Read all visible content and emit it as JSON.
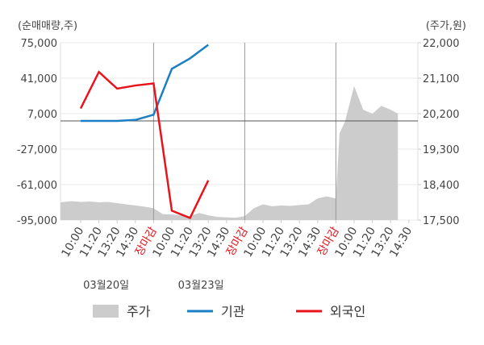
{
  "chart_data": {
    "type": "line",
    "y_label": "(순매매량,주)",
    "y2_label": "(주가,원)",
    "categories": [
      "10:00",
      "11:20",
      "13:20",
      "14:30",
      "장마감",
      "10:00",
      "11:20",
      "13:20",
      "14:30",
      "장마감",
      "10:00",
      "11:20",
      "13:20",
      "14:30",
      "장마감",
      "10:00",
      "11:20",
      "13:20",
      "14:30"
    ],
    "highlight_categories": [
      4,
      9,
      14
    ],
    "highlight_color": "#e8141c",
    "dates": [
      "03월20일",
      "03월23일"
    ],
    "ylim": [
      -95000,
      75000
    ],
    "yticks": [
      {
        "value": 75000,
        "label": "75,000"
      },
      {
        "value": 41000,
        "label": "41,000"
      },
      {
        "value": 7000,
        "label": "7,000"
      },
      {
        "value": -27000,
        "label": "-27,000"
      },
      {
        "value": -61000,
        "label": "-61,000"
      },
      {
        "value": -95000,
        "label": "-95,000"
      }
    ],
    "y2lim": [
      17500,
      22000
    ],
    "y2ticks": [
      {
        "value": 22000,
        "label": "22,000"
      },
      {
        "value": 21100,
        "label": "21,100"
      },
      {
        "value": 20200,
        "label": "20,200"
      },
      {
        "value": 19300,
        "label": "19,300"
      },
      {
        "value": 18400,
        "label": "18,400"
      },
      {
        "value": 17500,
        "label": "17,500"
      }
    ],
    "series": [
      {
        "name": "주가",
        "color": "#cccccc",
        "axis": "y2",
        "kind": "area",
        "x": [
          -1.1,
          -0.5,
          0,
          0.5,
          1,
          1.5,
          2,
          2.5,
          3,
          3.5,
          4,
          4.5,
          5,
          5.5,
          6,
          6.5,
          7,
          7.5,
          8,
          8.5,
          9,
          9.5,
          10,
          10.5,
          11,
          11.5,
          12,
          12.5,
          13,
          13.5,
          14,
          14.2,
          14.5,
          15,
          15.5,
          16,
          16.5,
          17,
          17.4
        ],
        "values": [
          17950,
          17980,
          17960,
          17970,
          17950,
          17960,
          17930,
          17900,
          17870,
          17840,
          17800,
          17650,
          17640,
          17620,
          17600,
          17680,
          17620,
          17580,
          17570,
          17560,
          17600,
          17800,
          17900,
          17850,
          17870,
          17860,
          17880,
          17900,
          18050,
          18100,
          18050,
          19700,
          20000,
          20900,
          20300,
          20200,
          20400,
          20300,
          20200
        ]
      },
      {
        "name": "기관",
        "color": "#1a7fc4",
        "kind": "line",
        "x": [
          0,
          1,
          2,
          3,
          4,
          5,
          6,
          7
        ],
        "values": [
          0,
          0,
          0,
          1000,
          6000,
          50000,
          60000,
          73000
        ]
      },
      {
        "name": "외국인",
        "color": "#e8141c",
        "kind": "line",
        "x": [
          0,
          1,
          2,
          3,
          4,
          5,
          6,
          7
        ],
        "values": [
          12000,
          47000,
          31000,
          34000,
          36000,
          -86000,
          -93000,
          -57000
        ]
      }
    ]
  }
}
